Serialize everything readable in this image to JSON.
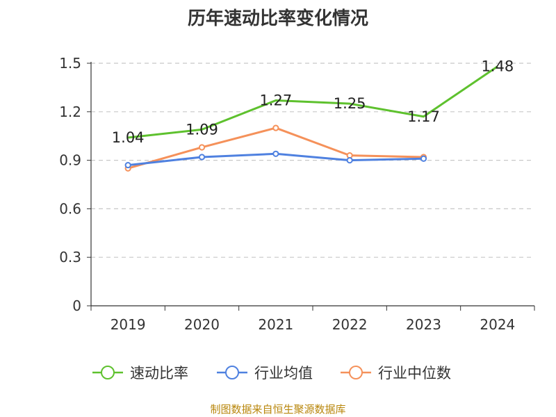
{
  "header": {
    "title": "历年速动比率变化情况"
  },
  "footer": {
    "source": "制图数据来自恒生聚源数据库"
  },
  "chart_data": {
    "type": "line",
    "title": "历年速动比率变化情况",
    "categories": [
      "2019",
      "2020",
      "2021",
      "2022",
      "2023",
      "2024"
    ],
    "ylim": [
      0,
      1.5
    ],
    "yticks": [
      "0",
      "0.3",
      "0.6",
      "0.9",
      "1.2",
      "1.5"
    ],
    "grid": true,
    "legend_position": "bottom",
    "series": [
      {
        "name": "速动比率",
        "color": "#5ec12e",
        "markers": false,
        "show_labels": true,
        "values": [
          1.04,
          1.09,
          1.27,
          1.25,
          1.17,
          1.48
        ],
        "labels": [
          "1.04",
          "1.09",
          "1.27",
          "1.25",
          "1.17",
          "1.48"
        ]
      },
      {
        "name": "行业均值",
        "color": "#4f81e0",
        "markers": true,
        "show_labels": false,
        "values": [
          0.87,
          0.92,
          0.94,
          0.9,
          0.91,
          null
        ]
      },
      {
        "name": "行业中位数",
        "color": "#f5915a",
        "markers": true,
        "show_labels": false,
        "values": [
          0.85,
          0.98,
          1.1,
          0.93,
          0.92,
          null
        ]
      }
    ]
  }
}
